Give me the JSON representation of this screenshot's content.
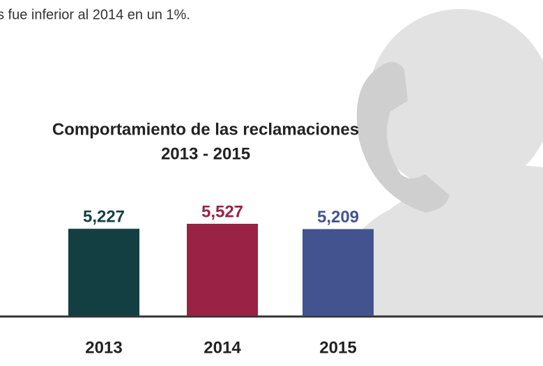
{
  "chart_data": {
    "type": "bar",
    "caption": "s fue inferior al 2014 en un 1%.",
    "title": [
      "Comportamiento de las reclamaciones",
      "2013 - 2015"
    ],
    "categories": [
      "2013",
      "2014",
      "2015"
    ],
    "values": [
      5227,
      5527,
      5209
    ],
    "value_labels": [
      "5,227",
      "5,527",
      "5,209"
    ],
    "colors": [
      "#143f42",
      "#9a2245",
      "#43538f"
    ]
  }
}
